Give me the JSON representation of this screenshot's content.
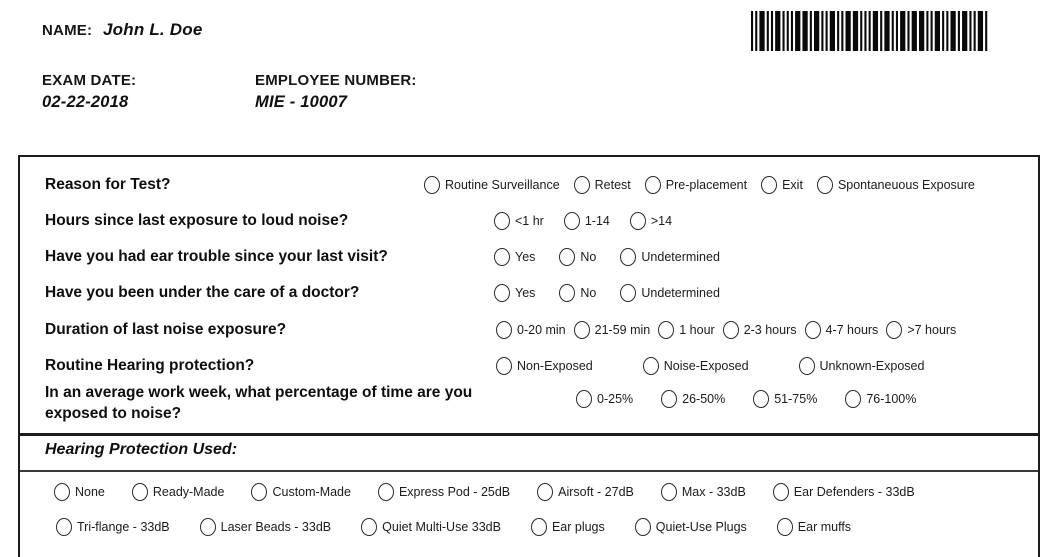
{
  "header": {
    "name_label": "NAME:",
    "name_value": "John L. Doe",
    "exam_date_label": "EXAM DATE:",
    "exam_date_value": "02-22-2018",
    "employee_number_label": "EMPLOYEE NUMBER:",
    "employee_number_value": "MIE - 10007"
  },
  "questionnaire": {
    "questions": [
      {
        "label": "Reason for Test?",
        "options": [
          "Routine Surveillance",
          "Retest",
          "Pre-placement",
          "Exit",
          "Spontaneuous Exposure"
        ]
      },
      {
        "label": "Hours since last exposure to loud noise?",
        "options": [
          "<1 hr",
          "1-14",
          ">14"
        ]
      },
      {
        "label": "Have you had ear trouble since your last visit?",
        "options": [
          "Yes",
          "No",
          "Undetermined"
        ]
      },
      {
        "label": "Have you been under the care of a doctor?",
        "options": [
          "Yes",
          "No",
          "Undetermined"
        ]
      },
      {
        "label": "Duration of last noise exposure?",
        "options": [
          "0-20 min",
          "21-59 min",
          "1 hour",
          "2-3 hours",
          "4-7 hours",
          ">7 hours"
        ]
      },
      {
        "label": "Routine Hearing protection?",
        "options": [
          "Non-Exposed",
          "Noise-Exposed",
          "Unknown-Exposed"
        ]
      },
      {
        "label": "In an average work week, what percentage of time are you exposed to noise?",
        "options": [
          "0-25%",
          "26-50%",
          "51-75%",
          "76-100%"
        ]
      }
    ],
    "hearing_protection": {
      "title": "Hearing Protection Used:",
      "options_row1": [
        "None",
        "Ready-Made",
        "Custom-Made",
        "Express Pod - 25dB",
        "Airsoft - 27dB",
        "Max - 33dB",
        "Ear Defenders - 33dB"
      ],
      "options_row2_partially_cut_off": [
        "Tri-flange - 33dB",
        "Laser Beads - 33dB",
        "Quiet Multi-Use 33dB",
        "Ear plugs",
        "Quiet-Use Plugs",
        "Ear muffs"
      ]
    },
    "radio_state": "all unselected"
  }
}
